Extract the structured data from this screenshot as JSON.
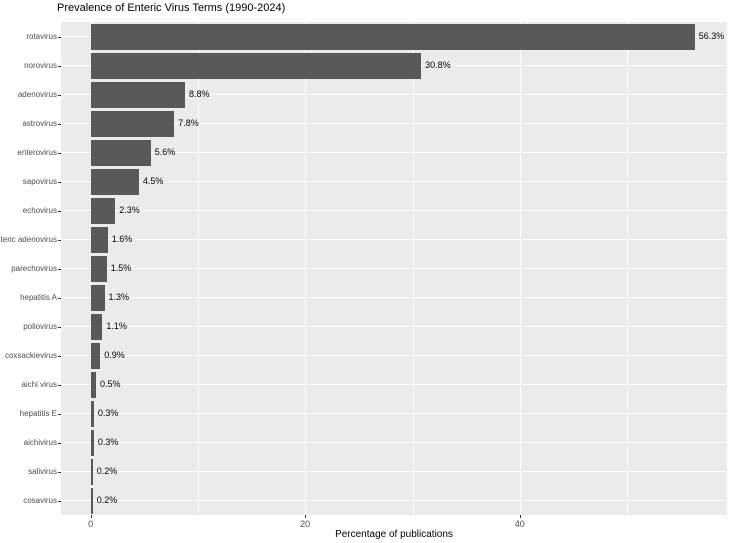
{
  "chart_data": {
    "type": "bar",
    "orientation": "horizontal",
    "title": "Prevalence of Enteric Virus Terms (1990-2024)",
    "xlabel": "Percentage of publications",
    "ylabel": "",
    "categories": [
      "rotavirus",
      "norovirus",
      "adenovirus",
      "astrovirus",
      "enterovirus",
      "sapovirus",
      "echovirus",
      "enteric adenovirus",
      "parechovirus",
      "hepatitis A",
      "poliovirus",
      "coxsackievirus",
      "aichi virus",
      "hepatitis E",
      "aichivirus",
      "salivirus",
      "cosavirus"
    ],
    "values": [
      56.3,
      30.8,
      8.8,
      7.8,
      5.6,
      4.5,
      2.3,
      1.6,
      1.5,
      1.3,
      1.1,
      0.9,
      0.5,
      0.3,
      0.3,
      0.2,
      0.2
    ],
    "bar_labels": [
      "56.3%",
      "30.8%",
      "8.8%",
      "7.8%",
      "5.6%",
      "4.5%",
      "2.3%",
      "1.6%",
      "1.5%",
      "1.3%",
      "1.1%",
      "0.9%",
      "0.5%",
      "0.3%",
      "0.3%",
      "0.2%",
      "0.2%"
    ],
    "x_ticks": [
      0,
      20,
      40
    ],
    "x_tick_labels": [
      "0",
      "20",
      "40"
    ],
    "x_minor_gridlines": [
      10,
      30,
      50
    ],
    "xlim": [
      0,
      59.3
    ],
    "grid": true,
    "legend": false,
    "colors": {
      "bar": "#595959",
      "panel_background": "#EBEBEB",
      "gridline": "#FFFFFF",
      "axis_text": "#4D4D4D",
      "title_text": "#000000",
      "bar_label_text": "#000000",
      "tick_mark": "#333333",
      "page_background": "#FFFFFF"
    }
  }
}
